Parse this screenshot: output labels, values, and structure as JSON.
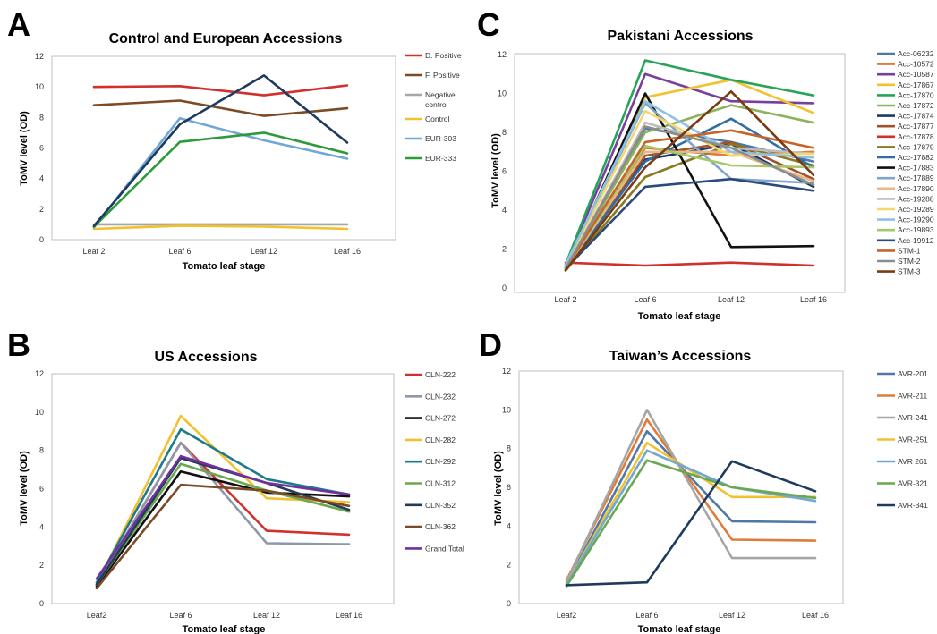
{
  "chart_data": [
    {
      "panel": "A",
      "type": "line",
      "title": "Control and European Accessions",
      "xlabel": "Tomato leaf stage",
      "ylabel": "ToMV level (OD)",
      "categories": [
        "Leaf 2",
        "Leaf 6",
        "Leaf 12",
        "Leaf 16"
      ],
      "y_ticks": [
        "0",
        "2",
        "4",
        "6",
        "8",
        "10",
        "12"
      ],
      "ylim": [
        0,
        12
      ],
      "grid": false,
      "legend": "right",
      "series": [
        {
          "name": "D. Positive",
          "color": "#d0312d",
          "values": [
            10.0,
            10.05,
            9.45,
            10.1
          ]
        },
        {
          "name": "F. Positive",
          "color": "#7b4a27",
          "values": [
            8.8,
            9.1,
            8.1,
            8.6
          ]
        },
        {
          "name": "Negative control",
          "color": "#a6a6a6",
          "values": [
            1.0,
            1.0,
            1.0,
            1.0
          ]
        },
        {
          "name": "Control",
          "color": "#f2c12e",
          "values": [
            0.7,
            0.9,
            0.85,
            0.7
          ]
        },
        {
          "name": "EUR-303",
          "color": "#6fa8d6",
          "values": [
            0.8,
            7.95,
            6.5,
            5.3
          ]
        },
        {
          "name": "EUR-333",
          "color": "#2e9b3a",
          "values": [
            0.85,
            6.4,
            7.0,
            5.65
          ]
        },
        {
          "name": "",
          "color": "#1f3a5f",
          "values": [
            0.9,
            7.55,
            10.75,
            6.35
          ]
        }
      ]
    },
    {
      "panel": "C",
      "type": "line",
      "title": "Pakistani Accessions",
      "xlabel": "Tomato leaf stage",
      "ylabel": "ToMV level (OD)",
      "categories": [
        "Leaf 2",
        "Leaf 6",
        "Leaf 12",
        "Leaf 16"
      ],
      "y_ticks": [
        "0",
        "2",
        "4",
        "6",
        "8",
        "10",
        "12"
      ],
      "ylim": [
        0,
        12
      ],
      "grid": false,
      "legend": "right",
      "series": [
        {
          "name": "Acc-06232",
          "color": "#4e79a7",
          "values": [
            1.1,
            8.2,
            7.5,
            6.5
          ]
        },
        {
          "name": "Acc-10572",
          "color": "#e07b39",
          "values": [
            1.0,
            7.2,
            6.8,
            7.0
          ]
        },
        {
          "name": "Acc-10587",
          "color": "#7a3f9a",
          "values": [
            1.1,
            11.0,
            9.6,
            9.5
          ]
        },
        {
          "name": "Acc-17867",
          "color": "#f2c12e",
          "values": [
            1.0,
            9.8,
            10.7,
            9.0
          ]
        },
        {
          "name": "Acc-17870",
          "color": "#27a35a",
          "values": [
            1.2,
            11.7,
            10.7,
            9.9
          ]
        },
        {
          "name": "Acc-17872",
          "color": "#8cb35a",
          "values": [
            1.0,
            8.0,
            9.4,
            8.5
          ]
        },
        {
          "name": "Acc-17874",
          "color": "#1f3a5f",
          "values": [
            1.0,
            6.6,
            7.4,
            5.2
          ]
        },
        {
          "name": "Acc-17877",
          "color": "#a0522d",
          "values": [
            0.9,
            6.8,
            7.5,
            5.6
          ]
        },
        {
          "name": "Acc-17878",
          "color": "#d0312d",
          "values": [
            1.3,
            1.15,
            1.3,
            1.15
          ]
        },
        {
          "name": "Acc-17879",
          "color": "#8a7a1d",
          "values": [
            0.9,
            5.7,
            7.4,
            6.3
          ]
        },
        {
          "name": "Acc-17882",
          "color": "#2f6fa5",
          "values": [
            1.0,
            6.5,
            8.7,
            6.2
          ]
        },
        {
          "name": "Acc-17883",
          "color": "#111111",
          "values": [
            1.0,
            10.0,
            2.1,
            2.15
          ]
        },
        {
          "name": "Acc-17889",
          "color": "#7ea6c9",
          "values": [
            1.1,
            9.5,
            5.6,
            5.4
          ]
        },
        {
          "name": "Acc-17890",
          "color": "#e8b88a",
          "values": [
            1.0,
            7.0,
            7.0,
            5.5
          ]
        },
        {
          "name": "Acc-19288",
          "color": "#bdbdbd",
          "values": [
            1.0,
            8.5,
            7.2,
            6.9
          ]
        },
        {
          "name": "Acc-19289",
          "color": "#f5d76e",
          "values": [
            1.1,
            9.1,
            6.8,
            6.9
          ]
        },
        {
          "name": "Acc-19290",
          "color": "#8fc1e3",
          "values": [
            1.2,
            9.6,
            7.0,
            6.7
          ]
        },
        {
          "name": "Acc-19893",
          "color": "#a5c86b",
          "values": [
            1.0,
            7.3,
            6.3,
            6.2
          ]
        },
        {
          "name": "Acc-19912",
          "color": "#2b4a7a",
          "values": [
            1.0,
            5.2,
            5.6,
            5.0
          ]
        },
        {
          "name": "STM-1",
          "color": "#c8642a",
          "values": [
            1.0,
            7.5,
            8.1,
            7.2
          ]
        },
        {
          "name": "STM-2",
          "color": "#8c8c8c",
          "values": [
            1.0,
            8.3,
            7.2,
            5.3
          ]
        },
        {
          "name": "STM-3",
          "color": "#7a3b12",
          "values": [
            0.9,
            6.2,
            10.1,
            5.8
          ]
        }
      ]
    },
    {
      "panel": "B",
      "type": "line",
      "title": "US Accessions",
      "xlabel": "Tomato leaf stage",
      "ylabel": "ToMV level (OD)",
      "categories": [
        "Leaf2",
        "Leaf 6",
        "Leaf 12",
        "Leaf 16"
      ],
      "y_ticks": [
        "0",
        "2",
        "4",
        "6",
        "8",
        "10",
        "12"
      ],
      "ylim": [
        0,
        12
      ],
      "grid": false,
      "legend": "right",
      "series": [
        {
          "name": "CLN-222",
          "color": "#d0312d",
          "values": [
            1.0,
            8.4,
            3.8,
            3.6
          ]
        },
        {
          "name": "CLN-232",
          "color": "#8c99a6",
          "values": [
            1.0,
            8.4,
            3.15,
            3.1
          ]
        },
        {
          "name": "CLN-272",
          "color": "#111111",
          "values": [
            0.9,
            6.9,
            5.8,
            5.6
          ]
        },
        {
          "name": "CLN-282",
          "color": "#f2c12e",
          "values": [
            1.0,
            9.8,
            5.5,
            5.3
          ]
        },
        {
          "name": "CLN-292",
          "color": "#1f7a8c",
          "values": [
            1.1,
            9.1,
            6.5,
            5.7
          ]
        },
        {
          "name": "CLN-312",
          "color": "#6aa84f",
          "values": [
            1.0,
            7.3,
            5.9,
            4.8
          ]
        },
        {
          "name": "CLN-352",
          "color": "#243b55",
          "values": [
            1.0,
            7.6,
            6.3,
            4.9
          ]
        },
        {
          "name": "CLN-362",
          "color": "#7b4a27",
          "values": [
            0.8,
            6.2,
            5.9,
            5.1
          ]
        },
        {
          "name": "Grand Total",
          "color": "#7030a0",
          "values": [
            1.3,
            7.7,
            6.3,
            5.7
          ]
        }
      ]
    },
    {
      "panel": "D",
      "type": "line",
      "title": "Taiwan’s Accessions",
      "xlabel": "Tomato leaf stage",
      "ylabel": "ToMV level (OD)",
      "categories": [
        "Leaf2",
        "Leaf 6",
        "Leaf 12",
        "Leaf 16"
      ],
      "y_ticks": [
        "0",
        "2",
        "4",
        "6",
        "8",
        "10",
        "12"
      ],
      "ylim": [
        0,
        12
      ],
      "grid": false,
      "legend": "right",
      "series": [
        {
          "name": "AVR-201",
          "color": "#4e79a7",
          "values": [
            1.0,
            8.9,
            4.25,
            4.2
          ]
        },
        {
          "name": "AVR-211",
          "color": "#e07b39",
          "values": [
            1.2,
            9.5,
            3.3,
            3.25
          ]
        },
        {
          "name": "AVR-241",
          "color": "#a6a6a6",
          "values": [
            1.1,
            10.0,
            2.35,
            2.35
          ]
        },
        {
          "name": "AVR-251",
          "color": "#f2c12e",
          "values": [
            1.0,
            8.3,
            5.5,
            5.5
          ]
        },
        {
          "name": "AVR 261",
          "color": "#6fa8d6",
          "values": [
            1.0,
            7.9,
            6.0,
            5.3
          ]
        },
        {
          "name": "AVR-321",
          "color": "#6aa84f",
          "values": [
            0.9,
            7.4,
            6.0,
            5.45
          ]
        },
        {
          "name": "AVR-341",
          "color": "#1f3a5f",
          "values": [
            0.95,
            1.1,
            7.35,
            5.8
          ]
        }
      ]
    }
  ]
}
